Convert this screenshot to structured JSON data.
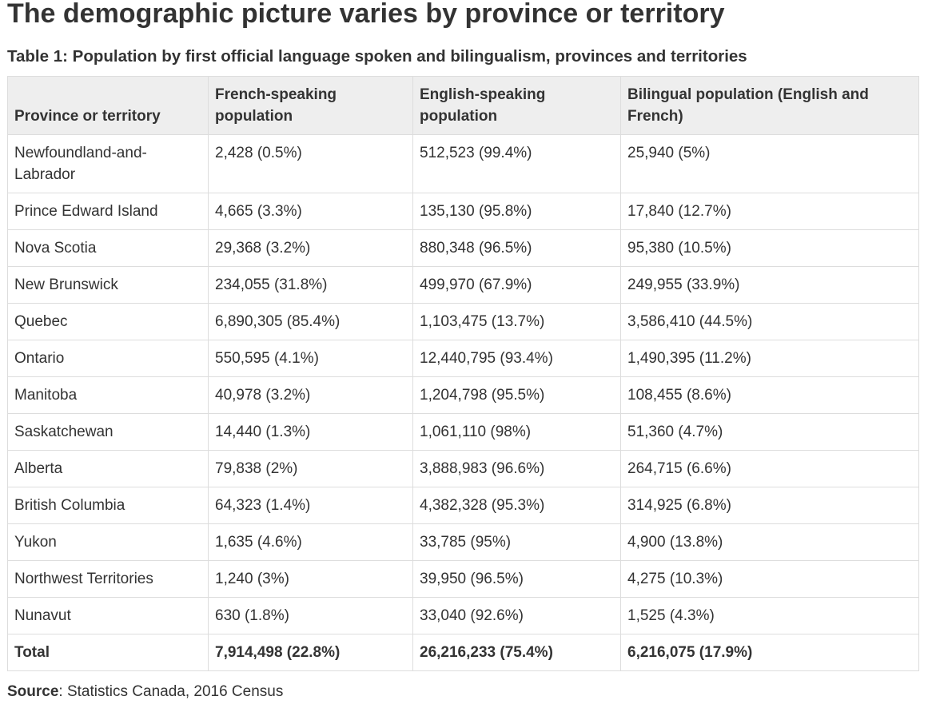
{
  "heading": "The demographic picture varies by province or territory",
  "caption": "Table 1: Population by first official language spoken and bilingualism, provinces and territories",
  "table": {
    "header": [
      "Province or territory",
      "French-speaking population",
      "English-speaking population",
      "Bilingual population (English and French)"
    ],
    "rows": [
      [
        "Newfoundland-and-Labrador",
        "2,428 (0.5%)",
        "512,523 (99.4%)",
        "25,940 (5%)"
      ],
      [
        "Prince Edward Island",
        "4,665 (3.3%)",
        "135,130 (95.8%)",
        "17,840 (12.7%)"
      ],
      [
        "Nova Scotia",
        "29,368 (3.2%)",
        "880,348 (96.5%)",
        "95,380 (10.5%)"
      ],
      [
        "New Brunswick",
        "234,055 (31.8%)",
        "499,970 (67.9%)",
        "249,955 (33.9%)"
      ],
      [
        "Quebec",
        "6,890,305 (85.4%)",
        "1,103,475 (13.7%)",
        "3,586,410 (44.5%)"
      ],
      [
        "Ontario",
        "550,595 (4.1%)",
        "12,440,795 (93.4%)",
        "1,490,395 (11.2%)"
      ],
      [
        "Manitoba",
        "40,978 (3.2%)",
        "1,204,798 (95.5%)",
        "108,455 (8.6%)"
      ],
      [
        "Saskatchewan",
        "14,440 (1.3%)",
        "1,061,110 (98%)",
        "51,360 (4.7%)"
      ],
      [
        "Alberta",
        "79,838 (2%)",
        "3,888,983 (96.6%)",
        "264,715 (6.6%)"
      ],
      [
        "British Columbia",
        "64,323 (1.4%)",
        "4,382,328 (95.3%)",
        "314,925 (6.8%)"
      ],
      [
        "Yukon",
        "1,635 (4.6%)",
        "33,785 (95%)",
        "4,900 (13.8%)"
      ],
      [
        "Northwest Territories",
        "1,240 (3%)",
        "39,950 (96.5%)",
        "4,275 (10.3%)"
      ],
      [
        "Nunavut",
        "630 (1.8%)",
        "33,040 (92.6%)",
        "1,525 (4.3%)"
      ]
    ],
    "total": [
      "Total",
      "7,914,498 (22.8%)",
      "26,216,233 (75.4%)",
      "6,216,075 (17.9%)"
    ]
  },
  "source": {
    "label": "Source",
    "text": ": Statistics Canada, 2016 Census"
  }
}
